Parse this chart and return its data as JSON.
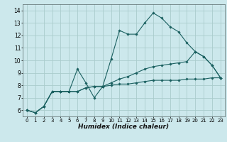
{
  "xlabel": "Humidex (Indice chaleur)",
  "bg_color": "#cce8ec",
  "grid_color": "#aacccc",
  "line_color": "#1a6060",
  "xlim": [
    -0.5,
    23.5
  ],
  "ylim": [
    5.5,
    14.5
  ],
  "xticks": [
    0,
    1,
    2,
    3,
    4,
    5,
    6,
    7,
    8,
    9,
    10,
    11,
    12,
    13,
    14,
    15,
    16,
    17,
    18,
    19,
    20,
    21,
    22,
    23
  ],
  "yticks": [
    6,
    7,
    8,
    9,
    10,
    11,
    12,
    13,
    14
  ],
  "series": [
    {
      "x": [
        0,
        1,
        2,
        3,
        4,
        5,
        6,
        7,
        8,
        9,
        10,
        11,
        12,
        13,
        14,
        15,
        16,
        17,
        18,
        19,
        20,
        21,
        22,
        23
      ],
      "y": [
        6.0,
        5.8,
        6.3,
        7.5,
        7.5,
        7.5,
        9.3,
        8.2,
        7.0,
        7.9,
        10.1,
        12.4,
        12.1,
        12.1,
        13.0,
        13.8,
        13.4,
        12.7,
        12.3,
        11.4,
        10.7,
        10.3,
        9.6,
        8.6
      ]
    },
    {
      "x": [
        0,
        1,
        2,
        3,
        4,
        5,
        6,
        7,
        8,
        9,
        10,
        11,
        12,
        13,
        14,
        15,
        16,
        17,
        18,
        19,
        20,
        21,
        22,
        23
      ],
      "y": [
        6.0,
        5.8,
        6.3,
        7.5,
        7.5,
        7.5,
        7.5,
        7.8,
        7.9,
        7.9,
        8.0,
        8.1,
        8.1,
        8.2,
        8.3,
        8.4,
        8.4,
        8.4,
        8.4,
        8.5,
        8.5,
        8.5,
        8.6,
        8.6
      ]
    },
    {
      "x": [
        0,
        1,
        2,
        3,
        4,
        5,
        6,
        7,
        8,
        9,
        10,
        11,
        12,
        13,
        14,
        15,
        16,
        17,
        18,
        19,
        20,
        21,
        22,
        23
      ],
      "y": [
        6.0,
        5.8,
        6.3,
        7.5,
        7.5,
        7.5,
        7.5,
        7.8,
        7.9,
        7.9,
        8.2,
        8.5,
        8.7,
        9.0,
        9.3,
        9.5,
        9.6,
        9.7,
        9.8,
        9.9,
        10.7,
        10.3,
        9.6,
        8.6
      ]
    }
  ]
}
